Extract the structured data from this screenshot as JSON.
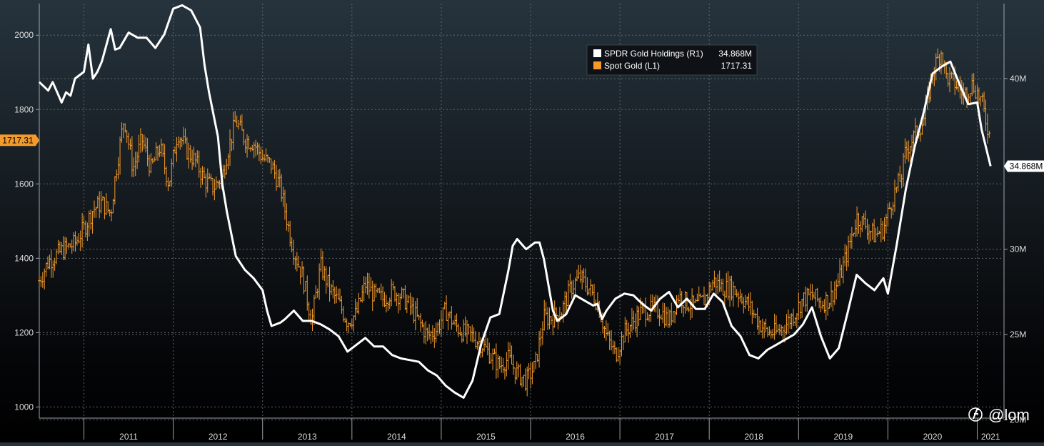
{
  "chart_data": {
    "type": "line",
    "legend": {
      "position": "top-right",
      "entries": [
        {
          "name": "SPDR Gold Holdings (R1)",
          "last_value": "34.868M",
          "color": "#ffffff",
          "axis": "right"
        },
        {
          "name": "Spot Gold (L1)",
          "last_value": "1717.31",
          "color": "#f39a2b",
          "axis": "left"
        }
      ]
    },
    "left_axis": {
      "ticks": [
        1000,
        1200,
        1400,
        1600,
        1800,
        2000
      ],
      "tick_labels": [
        "1000",
        "1200",
        "1400",
        "1600",
        "1800",
        "2000"
      ],
      "range": [
        970,
        2085
      ],
      "last_label": "1717.31"
    },
    "right_axis": {
      "ticks": [
        20,
        25,
        30,
        40
      ],
      "tick_labels": [
        "20M",
        "25M",
        "30M",
        "40M"
      ],
      "range": [
        20.1,
        44.4
      ],
      "last_label": "34.868M"
    },
    "x_axis": {
      "labels": [
        "2011",
        "2012",
        "2013",
        "2014",
        "2015",
        "2016",
        "2017",
        "2018",
        "2019",
        "2020",
        "2021"
      ],
      "range": [
        2010.5,
        2021.3
      ]
    },
    "grid": true,
    "series": [
      {
        "name": "Spot Gold (L1)",
        "axis": "left",
        "x": [
          2010.5,
          2010.6,
          2010.75,
          2010.9,
          2011.0,
          2011.1,
          2011.2,
          2011.3,
          2011.35,
          2011.45,
          2011.55,
          2011.65,
          2011.75,
          2011.85,
          2011.95,
          2012.05,
          2012.15,
          2012.25,
          2012.35,
          2012.45,
          2012.55,
          2012.6,
          2012.7,
          2012.8,
          2012.9,
          2013.0,
          2013.1,
          2013.2,
          2013.3,
          2013.35,
          2013.45,
          2013.55,
          2013.65,
          2013.75,
          2013.85,
          2013.95,
          2014.05,
          2014.15,
          2014.25,
          2014.35,
          2014.45,
          2014.55,
          2014.65,
          2014.75,
          2014.85,
          2014.95,
          2015.05,
          2015.15,
          2015.25,
          2015.35,
          2015.45,
          2015.55,
          2015.65,
          2015.75,
          2015.85,
          2015.95,
          2016.05,
          2016.15,
          2016.25,
          2016.35,
          2016.45,
          2016.55,
          2016.65,
          2016.75,
          2016.85,
          2016.95,
          2017.05,
          2017.15,
          2017.25,
          2017.35,
          2017.45,
          2017.55,
          2017.65,
          2017.75,
          2017.85,
          2017.95,
          2018.05,
          2018.15,
          2018.25,
          2018.35,
          2018.45,
          2018.55,
          2018.65,
          2018.75,
          2018.85,
          2018.95,
          2019.05,
          2019.15,
          2019.25,
          2019.35,
          2019.45,
          2019.55,
          2019.65,
          2019.75,
          2019.85,
          2019.95,
          2020.05,
          2020.15,
          2020.2,
          2020.3,
          2020.4,
          2020.5,
          2020.6,
          2020.65,
          2020.75,
          2020.85,
          2020.95,
          2021.05,
          2021.15
        ],
        "values": [
          1340,
          1390,
          1420,
          1440,
          1480,
          1530,
          1550,
          1520,
          1620,
          1780,
          1640,
          1720,
          1640,
          1700,
          1600,
          1740,
          1690,
          1660,
          1610,
          1590,
          1620,
          1680,
          1770,
          1720,
          1710,
          1670,
          1650,
          1590,
          1470,
          1420,
          1350,
          1230,
          1380,
          1320,
          1280,
          1230,
          1250,
          1330,
          1300,
          1290,
          1310,
          1300,
          1270,
          1230,
          1190,
          1210,
          1260,
          1220,
          1200,
          1190,
          1170,
          1140,
          1110,
          1130,
          1090,
          1070,
          1110,
          1240,
          1240,
          1260,
          1320,
          1350,
          1320,
          1280,
          1190,
          1140,
          1200,
          1230,
          1260,
          1260,
          1260,
          1230,
          1300,
          1280,
          1270,
          1290,
          1340,
          1320,
          1320,
          1300,
          1270,
          1230,
          1200,
          1200,
          1220,
          1250,
          1290,
          1300,
          1280,
          1290,
          1340,
          1420,
          1510,
          1490,
          1460,
          1480,
          1560,
          1620,
          1690,
          1730,
          1770,
          1900,
          1960,
          1890,
          1870,
          1840,
          1870,
          1820,
          1717.31
        ]
      },
      {
        "name": "SPDR Gold Holdings (R1)",
        "axis": "right",
        "x": [
          2010.5,
          2010.6,
          2010.65,
          2010.75,
          2010.8,
          2010.85,
          2010.9,
          2011.0,
          2011.05,
          2011.1,
          2011.15,
          2011.2,
          2011.3,
          2011.35,
          2011.4,
          2011.5,
          2011.6,
          2011.7,
          2011.8,
          2011.9,
          2012.0,
          2012.1,
          2012.2,
          2012.3,
          2012.35,
          2012.4,
          2012.5,
          2012.55,
          2012.6,
          2012.7,
          2012.8,
          2012.9,
          2013.0,
          2013.05,
          2013.1,
          2013.2,
          2013.25,
          2013.35,
          2013.45,
          2013.55,
          2013.65,
          2013.75,
          2013.85,
          2013.95,
          2014.05,
          2014.15,
          2014.25,
          2014.35,
          2014.45,
          2014.55,
          2014.65,
          2014.75,
          2014.85,
          2014.95,
          2015.05,
          2015.15,
          2015.25,
          2015.35,
          2015.45,
          2015.55,
          2015.65,
          2015.75,
          2015.8,
          2015.85,
          2015.95,
          2016.05,
          2016.1,
          2016.15,
          2016.25,
          2016.3,
          2016.35,
          2016.4,
          2016.5,
          2016.6,
          2016.7,
          2016.75,
          2016.8,
          2016.85,
          2016.95,
          2017.05,
          2017.15,
          2017.25,
          2017.35,
          2017.45,
          2017.55,
          2017.65,
          2017.75,
          2017.85,
          2017.95,
          2018.05,
          2018.15,
          2018.25,
          2018.35,
          2018.45,
          2018.55,
          2018.65,
          2018.75,
          2018.85,
          2018.95,
          2019.05,
          2019.15,
          2019.25,
          2019.35,
          2019.45,
          2019.55,
          2019.65,
          2019.75,
          2019.85,
          2019.95,
          2020.0,
          2020.1,
          2020.2,
          2020.3,
          2020.4,
          2020.5,
          2020.6,
          2020.7,
          2020.8,
          2020.9,
          2021.0,
          2021.05,
          2021.15
        ],
        "values": [
          39.8,
          39.3,
          39.8,
          38.6,
          39.2,
          39.0,
          40.0,
          40.4,
          42.0,
          40.0,
          40.4,
          41.0,
          42.9,
          41.7,
          41.8,
          42.7,
          42.4,
          42.4,
          41.8,
          42.6,
          44.1,
          44.3,
          44.0,
          43.0,
          40.8,
          39.2,
          36.6,
          33.8,
          32.2,
          29.6,
          28.8,
          28.3,
          27.6,
          26.4,
          25.5,
          25.7,
          25.9,
          26.4,
          25.8,
          25.8,
          25.6,
          25.3,
          24.9,
          24.0,
          24.4,
          24.8,
          24.3,
          24.3,
          23.8,
          23.6,
          23.5,
          23.4,
          22.9,
          22.6,
          22.0,
          21.6,
          21.3,
          22.3,
          24.5,
          26.0,
          26.2,
          28.7,
          30.2,
          30.6,
          30.0,
          30.4,
          30.4,
          29.4,
          26.4,
          25.8,
          26.0,
          26.2,
          27.3,
          27.0,
          26.7,
          26.8,
          25.9,
          26.4,
          27.1,
          27.4,
          27.3,
          26.8,
          26.4,
          27.1,
          27.5,
          26.6,
          27.1,
          26.5,
          26.5,
          27.4,
          26.9,
          25.5,
          24.9,
          23.8,
          23.6,
          24.1,
          24.4,
          24.7,
          25.0,
          25.6,
          26.6,
          24.9,
          23.6,
          24.2,
          26.3,
          28.5,
          28.0,
          27.6,
          28.3,
          27.4,
          30.3,
          33.5,
          36.0,
          38.0,
          40.3,
          40.7,
          41.0,
          39.7,
          38.5,
          38.6,
          37.0,
          34.868
        ]
      }
    ]
  },
  "watermark": {
    "text": "@lom",
    "icon": "bloomberg-b-icon"
  }
}
